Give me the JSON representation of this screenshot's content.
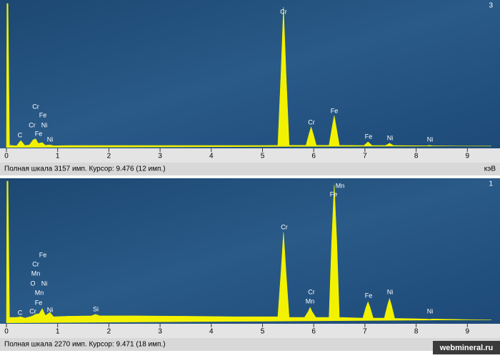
{
  "chart_data": [
    {
      "type": "area",
      "panel_label": "3",
      "status": "Полная шкала 3157 имп. Курсор: 9.476  (12 имп.)",
      "unit": "кэВ",
      "xlim": [
        0,
        9.47
      ],
      "ylim": [
        0,
        3157
      ],
      "xticks": [
        0,
        1,
        2,
        3,
        4,
        5,
        6,
        7,
        8,
        9
      ],
      "x": [
        0,
        0.01,
        0.03,
        0.06,
        0.2,
        0.28,
        0.36,
        0.45,
        0.52,
        0.57,
        0.62,
        0.7,
        0.76,
        0.85,
        0.92,
        1.2,
        2,
        3,
        4,
        5,
        5.3,
        5.36,
        5.41,
        5.46,
        5.52,
        5.85,
        5.91,
        5.95,
        5.99,
        6.05,
        6.3,
        6.36,
        6.4,
        6.44,
        6.5,
        6.98,
        7.06,
        7.14,
        7.4,
        7.48,
        7.56,
        8.2,
        8.26,
        8.32,
        9,
        9.47
      ],
      "series": [
        {
          "color": "#f2f200",
          "values": [
            0,
            3157,
            3157,
            50,
            40,
            155,
            45,
            60,
            170,
            190,
            90,
            110,
            50,
            60,
            40,
            45,
            45,
            45,
            45,
            45,
            50,
            1600,
            3080,
            1600,
            50,
            50,
            300,
            450,
            300,
            50,
            50,
            450,
            700,
            450,
            50,
            45,
            125,
            45,
            45,
            95,
            45,
            40,
            50,
            40,
            35,
            35
          ]
        }
      ],
      "annotations": [
        "Cr",
        "Fe",
        "Cr",
        "Ni",
        "C",
        "Fe",
        "Ni",
        "Cr",
        "Cr",
        "Fe",
        "Fe",
        "Ni",
        "Ni"
      ]
    },
    {
      "type": "area",
      "panel_label": "1",
      "status": "Полная шкала 2270 имп. Курсор: 9.471  (18 имп.)",
      "xlim": [
        0,
        9.47
      ],
      "ylim": [
        0,
        2270
      ],
      "xticks": [
        0,
        1,
        2,
        3,
        4,
        5,
        6,
        7,
        8,
        9
      ],
      "x": [
        0,
        0.01,
        0.03,
        0.06,
        0.2,
        0.28,
        0.36,
        0.5,
        0.57,
        0.64,
        0.7,
        0.76,
        0.85,
        0.92,
        1.2,
        1.66,
        1.74,
        1.82,
        2.5,
        3.5,
        4.5,
        5.3,
        5.36,
        5.41,
        5.46,
        5.52,
        5.82,
        5.89,
        5.93,
        5.97,
        6.04,
        6.3,
        6.35,
        6.4,
        6.45,
        6.5,
        6.96,
        7.02,
        7.06,
        7.1,
        7.16,
        7.38,
        7.44,
        7.48,
        7.52,
        7.58,
        8.2,
        8.26,
        8.32,
        9,
        9.47
      ],
      "series": [
        {
          "color": "#f2f200",
          "values": [
            0,
            2270,
            2270,
            90,
            90,
            100,
            80,
            110,
            140,
            150,
            230,
            120,
            170,
            100,
            110,
            115,
            140,
            115,
            115,
            110,
            100,
            100,
            800,
            1450,
            800,
            90,
            90,
            180,
            250,
            180,
            90,
            90,
            1300,
            2210,
            1300,
            90,
            80,
            250,
            340,
            250,
            80,
            80,
            280,
            390,
            280,
            75,
            65,
            60,
            65,
            55,
            50
          ]
        }
      ],
      "annotations": [
        "Fe",
        "Cr",
        "Mn",
        "O",
        "Ni",
        "Mn",
        "Fe",
        "C",
        "Cr",
        "Ni",
        "Si",
        "Cr",
        "Cr",
        "Mn",
        "Fe",
        "Ni",
        "Ni",
        "Mn",
        "Fe"
      ]
    }
  ],
  "watermark": "webmineral.ru"
}
